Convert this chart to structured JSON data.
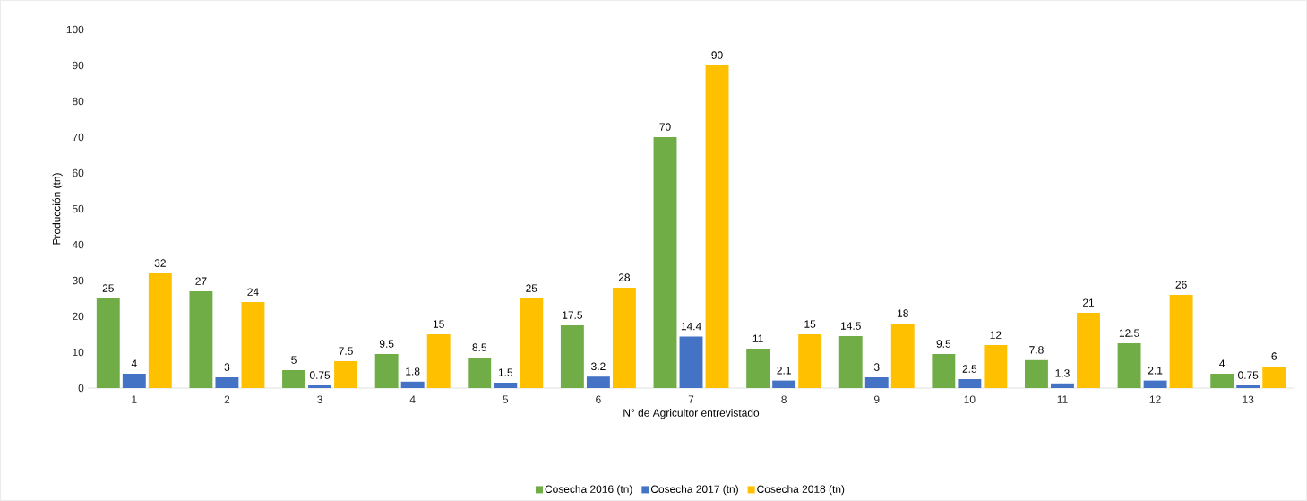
{
  "chart_data": {
    "type": "bar",
    "xlabel": "N° de Agricultor entrevistado",
    "ylabel": "Producción (tn)",
    "categories": [
      "1",
      "2",
      "3",
      "4",
      "5",
      "6",
      "7",
      "8",
      "9",
      "10",
      "11",
      "12",
      "13"
    ],
    "series": [
      {
        "name": "Cosecha 2016 (tn)",
        "color": "#70ad47",
        "values": [
          25,
          27,
          5,
          9.5,
          8.5,
          17.5,
          70,
          11,
          14.5,
          9.5,
          7.8,
          12.5,
          4
        ]
      },
      {
        "name": "Cosecha 2017 (tn)",
        "color": "#4472c4",
        "values": [
          4,
          3,
          0.75,
          1.8,
          1.5,
          3.2,
          14.4,
          2.1,
          3,
          2.5,
          1.3,
          2.1,
          0.75
        ]
      },
      {
        "name": "Cosecha 2018 (tn)",
        "color": "#ffc000",
        "values": [
          32,
          24,
          7.5,
          15,
          25,
          28,
          90,
          15,
          18,
          12,
          21,
          26,
          6
        ]
      }
    ],
    "ylim": [
      0,
      100
    ],
    "yticks": [
      0,
      10,
      20,
      30,
      40,
      50,
      60,
      70,
      80,
      90,
      100
    ],
    "data_labels": true,
    "legend": "bottom",
    "grid": false
  }
}
